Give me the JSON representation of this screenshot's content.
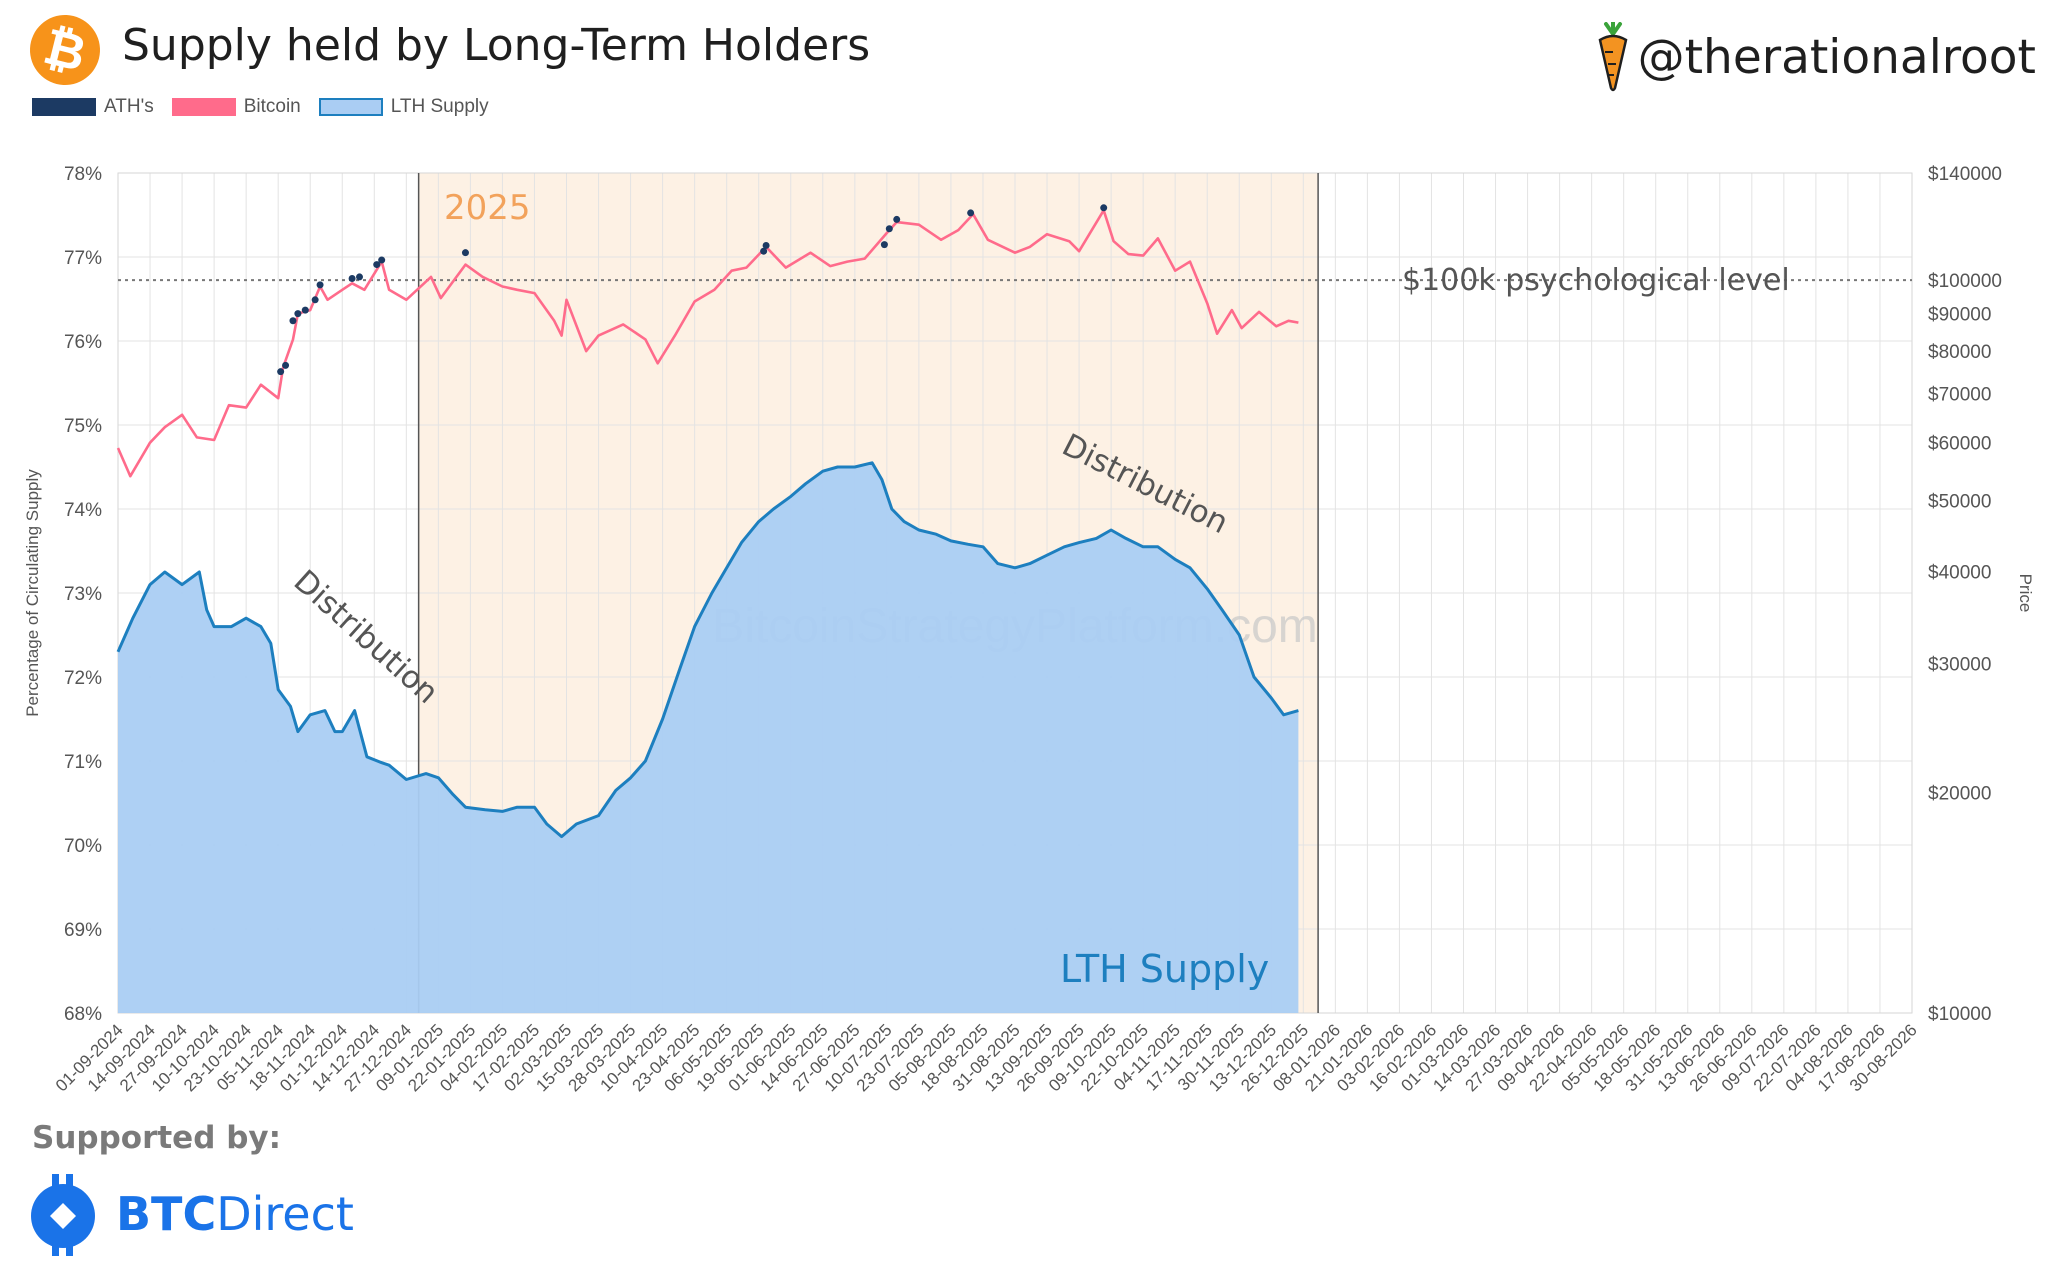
{
  "header": {
    "title": "Supply held by Long-Term Holders",
    "handle": "@therationalroot"
  },
  "legend": [
    {
      "label": "ATH's",
      "color": "#1c3a63"
    },
    {
      "label": "Bitcoin",
      "color": "#ff6b8b"
    },
    {
      "label": "LTH Supply",
      "color": "#aacdf3",
      "border": "#1d7fbf"
    }
  ],
  "footer": {
    "supported_by": "Supported by:",
    "sponsor_bold": "BTC",
    "sponsor_rest": "Direct"
  },
  "chart_data": {
    "type": "area",
    "title": "Supply held by Long-Term Holders",
    "ylabel": "Percentage of Circulating Supply",
    "y2label": "Price",
    "ylim": [
      68,
      78
    ],
    "y2lim": [
      10000,
      140000
    ],
    "y2scale": "log",
    "y_ticks": [
      "68%",
      "69%",
      "70%",
      "71%",
      "72%",
      "73%",
      "74%",
      "75%",
      "76%",
      "77%",
      "78%"
    ],
    "y2_ticks": [
      {
        "value": 10000,
        "label": "$10000"
      },
      {
        "value": 20000,
        "label": "$20000"
      },
      {
        "value": 30000,
        "label": "$30000"
      },
      {
        "value": 40000,
        "label": "$40000"
      },
      {
        "value": 50000,
        "label": "$50000"
      },
      {
        "value": 60000,
        "label": "$60000"
      },
      {
        "value": 70000,
        "label": "$70000"
      },
      {
        "value": 80000,
        "label": "$80000"
      },
      {
        "value": 90000,
        "label": "$90000"
      },
      {
        "value": 100000,
        "label": "$100000"
      },
      {
        "value": 140000,
        "label": "$140000"
      }
    ],
    "x_ticks": [
      "01-09-2024",
      "14-09-2024",
      "27-09-2024",
      "10-10-2024",
      "23-10-2024",
      "05-11-2024",
      "18-11-2024",
      "01-12-2024",
      "14-12-2024",
      "27-12-2024",
      "09-01-2025",
      "22-01-2025",
      "04-02-2025",
      "17-02-2025",
      "02-03-2025",
      "15-03-2025",
      "28-03-2025",
      "10-04-2025",
      "23-04-2025",
      "06-05-2025",
      "19-05-2025",
      "01-06-2025",
      "14-06-2025",
      "27-06-2025",
      "10-07-2025",
      "23-07-2025",
      "05-08-2025",
      "18-08-2025",
      "31-08-2025",
      "13-09-2025",
      "26-09-2025",
      "09-10-2025",
      "22-10-2025",
      "04-11-2025",
      "17-11-2025",
      "30-11-2025",
      "13-12-2025",
      "26-12-2025",
      "08-01-2026",
      "21-01-2026",
      "03-02-2026",
      "16-02-2026",
      "01-03-2026",
      "14-03-2026",
      "27-03-2026",
      "09-04-2026",
      "22-04-2026",
      "05-05-2026",
      "18-05-2026",
      "31-05-2026",
      "13-06-2026",
      "26-06-2026",
      "09-07-2026",
      "22-07-2026",
      "04-08-2026",
      "17-08-2026",
      "30-08-2026"
    ],
    "x_range": [
      "01-09-2024",
      "30-08-2026"
    ],
    "grid": true,
    "legend_position": "top-left",
    "series": [
      {
        "name": "LTH Supply",
        "axis": "left",
        "type": "area",
        "color": "#1d7fbf",
        "fill": "#aacdf3",
        "points": [
          [
            "01-09-2024",
            72.3
          ],
          [
            "07-09-2024",
            72.7
          ],
          [
            "14-09-2024",
            73.1
          ],
          [
            "20-09-2024",
            73.25
          ],
          [
            "27-09-2024",
            73.1
          ],
          [
            "04-10-2024",
            73.25
          ],
          [
            "07-10-2024",
            72.8
          ],
          [
            "10-10-2024",
            72.6
          ],
          [
            "17-10-2024",
            72.6
          ],
          [
            "23-10-2024",
            72.7
          ],
          [
            "29-10-2024",
            72.6
          ],
          [
            "02-11-2024",
            72.4
          ],
          [
            "05-11-2024",
            71.85
          ],
          [
            "10-11-2024",
            71.65
          ],
          [
            "13-11-2024",
            71.35
          ],
          [
            "18-11-2024",
            71.55
          ],
          [
            "24-11-2024",
            71.6
          ],
          [
            "28-11-2024",
            71.35
          ],
          [
            "01-12-2024",
            71.35
          ],
          [
            "06-12-2024",
            71.6
          ],
          [
            "11-12-2024",
            71.05
          ],
          [
            "17-12-2024",
            70.98
          ],
          [
            "20-12-2024",
            70.95
          ],
          [
            "27-12-2024",
            70.78
          ],
          [
            "04-01-2025",
            70.85
          ],
          [
            "09-01-2025",
            70.8
          ],
          [
            "15-01-2025",
            70.6
          ],
          [
            "20-01-2025",
            70.45
          ],
          [
            "28-01-2025",
            70.42
          ],
          [
            "04-02-2025",
            70.4
          ],
          [
            "10-02-2025",
            70.45
          ],
          [
            "17-02-2025",
            70.45
          ],
          [
            "22-02-2025",
            70.25
          ],
          [
            "28-02-2025",
            70.1
          ],
          [
            "06-03-2025",
            70.25
          ],
          [
            "15-03-2025",
            70.35
          ],
          [
            "22-03-2025",
            70.65
          ],
          [
            "28-03-2025",
            70.8
          ],
          [
            "03-04-2025",
            71.0
          ],
          [
            "10-04-2025",
            71.5
          ],
          [
            "17-04-2025",
            72.1
          ],
          [
            "23-04-2025",
            72.6
          ],
          [
            "30-04-2025",
            73.0
          ],
          [
            "06-05-2025",
            73.3
          ],
          [
            "12-05-2025",
            73.6
          ],
          [
            "19-05-2025",
            73.85
          ],
          [
            "25-05-2025",
            74.0
          ],
          [
            "01-06-2025",
            74.15
          ],
          [
            "07-06-2025",
            74.3
          ],
          [
            "14-06-2025",
            74.45
          ],
          [
            "20-06-2025",
            74.5
          ],
          [
            "27-06-2025",
            74.5
          ],
          [
            "04-07-2025",
            74.55
          ],
          [
            "08-07-2025",
            74.35
          ],
          [
            "12-07-2025",
            74.0
          ],
          [
            "17-07-2025",
            73.85
          ],
          [
            "23-07-2025",
            73.75
          ],
          [
            "30-07-2025",
            73.7
          ],
          [
            "05-08-2025",
            73.62
          ],
          [
            "12-08-2025",
            73.58
          ],
          [
            "18-08-2025",
            73.55
          ],
          [
            "24-08-2025",
            73.35
          ],
          [
            "31-08-2025",
            73.3
          ],
          [
            "06-09-2025",
            73.35
          ],
          [
            "13-09-2025",
            73.45
          ],
          [
            "20-09-2025",
            73.55
          ],
          [
            "26-09-2025",
            73.6
          ],
          [
            "03-10-2025",
            73.65
          ],
          [
            "09-10-2025",
            73.75
          ],
          [
            "15-10-2025",
            73.65
          ],
          [
            "22-10-2025",
            73.55
          ],
          [
            "28-10-2025",
            73.55
          ],
          [
            "04-11-2025",
            73.4
          ],
          [
            "10-11-2025",
            73.3
          ],
          [
            "17-11-2025",
            73.05
          ],
          [
            "23-11-2025",
            72.8
          ],
          [
            "30-11-2025",
            72.5
          ],
          [
            "06-12-2025",
            72.0
          ],
          [
            "13-12-2025",
            71.75
          ],
          [
            "18-12-2025",
            71.55
          ],
          [
            "24-12-2025",
            71.6
          ]
        ]
      },
      {
        "name": "Bitcoin",
        "axis": "right",
        "type": "line",
        "color": "#ff6b8b",
        "points": [
          [
            "01-09-2024",
            59000
          ],
          [
            "06-09-2024",
            54000
          ],
          [
            "14-09-2024",
            60000
          ],
          [
            "20-09-2024",
            63000
          ],
          [
            "27-09-2024",
            65500
          ],
          [
            "03-10-2024",
            61000
          ],
          [
            "10-10-2024",
            60500
          ],
          [
            "16-10-2024",
            67500
          ],
          [
            "23-10-2024",
            67000
          ],
          [
            "29-10-2024",
            72000
          ],
          [
            "05-11-2024",
            69000
          ],
          [
            "07-11-2024",
            76000
          ],
          [
            "11-11-2024",
            83000
          ],
          [
            "13-11-2024",
            90000
          ],
          [
            "18-11-2024",
            91000
          ],
          [
            "22-11-2024",
            98000
          ],
          [
            "25-11-2024",
            94000
          ],
          [
            "01-12-2024",
            97000
          ],
          [
            "05-12-2024",
            99000
          ],
          [
            "10-12-2024",
            97000
          ],
          [
            "17-12-2024",
            106000
          ],
          [
            "20-12-2024",
            97000
          ],
          [
            "27-12-2024",
            94000
          ],
          [
            "06-01-2025",
            101000
          ],
          [
            "10-01-2025",
            94500
          ],
          [
            "20-01-2025",
            105000
          ],
          [
            "27-01-2025",
            101000
          ],
          [
            "04-02-2025",
            98000
          ],
          [
            "10-02-2025",
            97000
          ],
          [
            "17-02-2025",
            96000
          ],
          [
            "25-02-2025",
            88000
          ],
          [
            "28-02-2025",
            84000
          ],
          [
            "02-03-2025",
            94000
          ],
          [
            "10-03-2025",
            80000
          ],
          [
            "15-03-2025",
            84000
          ],
          [
            "25-03-2025",
            87000
          ],
          [
            "03-04-2025",
            83000
          ],
          [
            "08-04-2025",
            77000
          ],
          [
            "15-04-2025",
            84000
          ],
          [
            "23-04-2025",
            93500
          ],
          [
            "01-05-2025",
            97000
          ],
          [
            "08-05-2025",
            103000
          ],
          [
            "14-05-2025",
            104000
          ],
          [
            "22-05-2025",
            111000
          ],
          [
            "30-05-2025",
            104000
          ],
          [
            "09-06-2025",
            109000
          ],
          [
            "17-06-2025",
            104500
          ],
          [
            "24-06-2025",
            106000
          ],
          [
            "01-07-2025",
            107000
          ],
          [
            "10-07-2025",
            116000
          ],
          [
            "14-07-2025",
            120000
          ],
          [
            "23-07-2025",
            119000
          ],
          [
            "01-08-2025",
            113500
          ],
          [
            "08-08-2025",
            117000
          ],
          [
            "14-08-2025",
            123000
          ],
          [
            "20-08-2025",
            113500
          ],
          [
            "31-08-2025",
            109000
          ],
          [
            "06-09-2025",
            111000
          ],
          [
            "13-09-2025",
            115500
          ],
          [
            "22-09-2025",
            113000
          ],
          [
            "26-09-2025",
            109500
          ],
          [
            "06-10-2025",
            124500
          ],
          [
            "10-10-2025",
            113000
          ],
          [
            "16-10-2025",
            108500
          ],
          [
            "22-10-2025",
            108000
          ],
          [
            "28-10-2025",
            114000
          ],
          [
            "04-11-2025",
            103000
          ],
          [
            "10-11-2025",
            106000
          ],
          [
            "17-11-2025",
            93000
          ],
          [
            "21-11-2025",
            84500
          ],
          [
            "27-11-2025",
            91000
          ],
          [
            "01-12-2025",
            86000
          ],
          [
            "08-12-2025",
            90500
          ],
          [
            "15-12-2025",
            86500
          ],
          [
            "20-12-2025",
            88000
          ],
          [
            "24-12-2025",
            87500
          ]
        ]
      },
      {
        "name": "ATH's",
        "axis": "right",
        "type": "scatter",
        "color": "#1c3a63",
        "points": [
          [
            "06-11-2024",
            75000
          ],
          [
            "08-11-2024",
            76500
          ],
          [
            "11-11-2024",
            88000
          ],
          [
            "13-11-2024",
            90000
          ],
          [
            "16-11-2024",
            91000
          ],
          [
            "20-11-2024",
            94000
          ],
          [
            "22-11-2024",
            98500
          ],
          [
            "05-12-2024",
            100500
          ],
          [
            "08-12-2024",
            101000
          ],
          [
            "15-12-2024",
            105000
          ],
          [
            "17-12-2024",
            106500
          ],
          [
            "20-01-2025",
            109000
          ],
          [
            "21-05-2025",
            109500
          ],
          [
            "22-05-2025",
            111500
          ],
          [
            "09-07-2025",
            111800
          ],
          [
            "11-07-2025",
            117500
          ],
          [
            "14-07-2025",
            121000
          ],
          [
            "13-08-2025",
            123500
          ],
          [
            "06-10-2025",
            125500
          ]
        ]
      }
    ],
    "annotations": [
      {
        "text": "2025",
        "kind": "shaded-region-label"
      },
      {
        "text": "$100k psychological level",
        "kind": "reference-line",
        "value": 100000,
        "axis": "right"
      },
      {
        "text": "Distribution",
        "kind": "label"
      },
      {
        "text": "Distribution",
        "kind": "label"
      },
      {
        "text": "LTH Supply",
        "kind": "series-label"
      },
      {
        "text": "BitcoinStrategyPlatform.com",
        "kind": "watermark"
      }
    ],
    "shaded_region": {
      "from": "01-01-2025",
      "to": "01-01-2026",
      "color": "#fdf1e4"
    }
  }
}
